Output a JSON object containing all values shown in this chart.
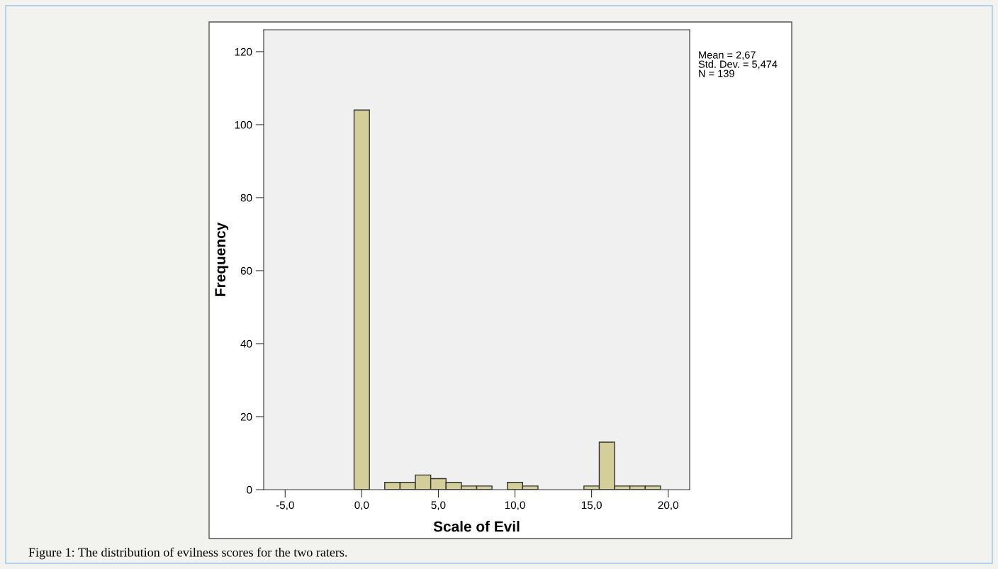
{
  "chart_data": {
    "type": "histogram",
    "xlabel": "Scale of Evil",
    "ylabel": "Frequency",
    "bins": [
      -0.5,
      0.5,
      1.5,
      2.5,
      3.5,
      4.5,
      5.5,
      6.5,
      7.5,
      8.5,
      9.5,
      10.5,
      11.5,
      12.5,
      13.5,
      14.5,
      15.5,
      16.5,
      17.5,
      18.5,
      19.5
    ],
    "values": [
      104,
      0,
      2,
      2,
      4,
      3,
      2,
      1,
      1,
      0,
      2,
      1,
      0,
      0,
      0,
      1,
      13,
      1,
      1,
      1
    ],
    "color": "#d3ce9a",
    "xlim": [
      -6.4,
      21.4
    ],
    "xticks": [
      {
        "value": -5,
        "label": "-5,0"
      },
      {
        "value": 0,
        "label": "0,0"
      },
      {
        "value": 5,
        "label": "5,0"
      },
      {
        "value": 10,
        "label": "10,0"
      },
      {
        "value": 15,
        "label": "15,0"
      },
      {
        "value": 20,
        "label": "20,0"
      }
    ],
    "ylim": [
      0,
      126
    ],
    "yticks": [
      0,
      20,
      40,
      60,
      80,
      100,
      120
    ],
    "grid": false,
    "annotations": [
      "Mean = 2,67\nStd. Dev. = 5,474\nN = 139",
      "Figure 1: The distribution of evilness scores for the two raters."
    ]
  }
}
